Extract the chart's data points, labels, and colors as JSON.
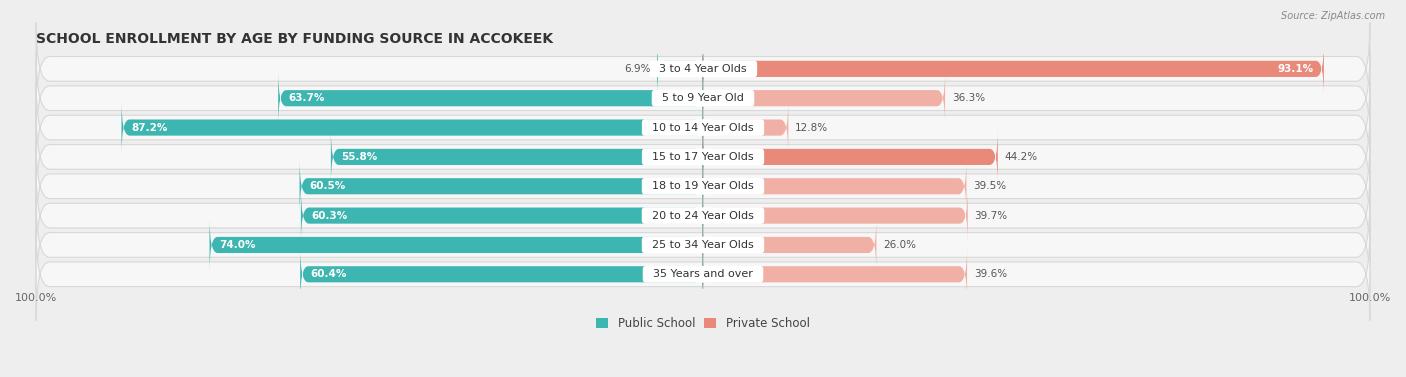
{
  "title": "SCHOOL ENROLLMENT BY AGE BY FUNDING SOURCE IN ACCOKEEK",
  "source": "Source: ZipAtlas.com",
  "categories": [
    "3 to 4 Year Olds",
    "5 to 9 Year Old",
    "10 to 14 Year Olds",
    "15 to 17 Year Olds",
    "18 to 19 Year Olds",
    "20 to 24 Year Olds",
    "25 to 34 Year Olds",
    "35 Years and over"
  ],
  "public_values": [
    6.9,
    63.7,
    87.2,
    55.8,
    60.5,
    60.3,
    74.0,
    60.4
  ],
  "private_values": [
    93.1,
    36.3,
    12.8,
    44.2,
    39.5,
    39.7,
    26.0,
    39.6
  ],
  "public_color": "#3db5b0",
  "private_color": "#e8897a",
  "private_color_light": "#f0b0a5",
  "background_color": "#eeeeee",
  "row_bg_color": "#f7f7f7",
  "row_border_color": "#d8d8d8",
  "title_fontsize": 10,
  "label_fontsize": 8,
  "value_fontsize": 7.5,
  "legend_fontsize": 8.5,
  "axis_label_fontsize": 8,
  "scale": 100
}
